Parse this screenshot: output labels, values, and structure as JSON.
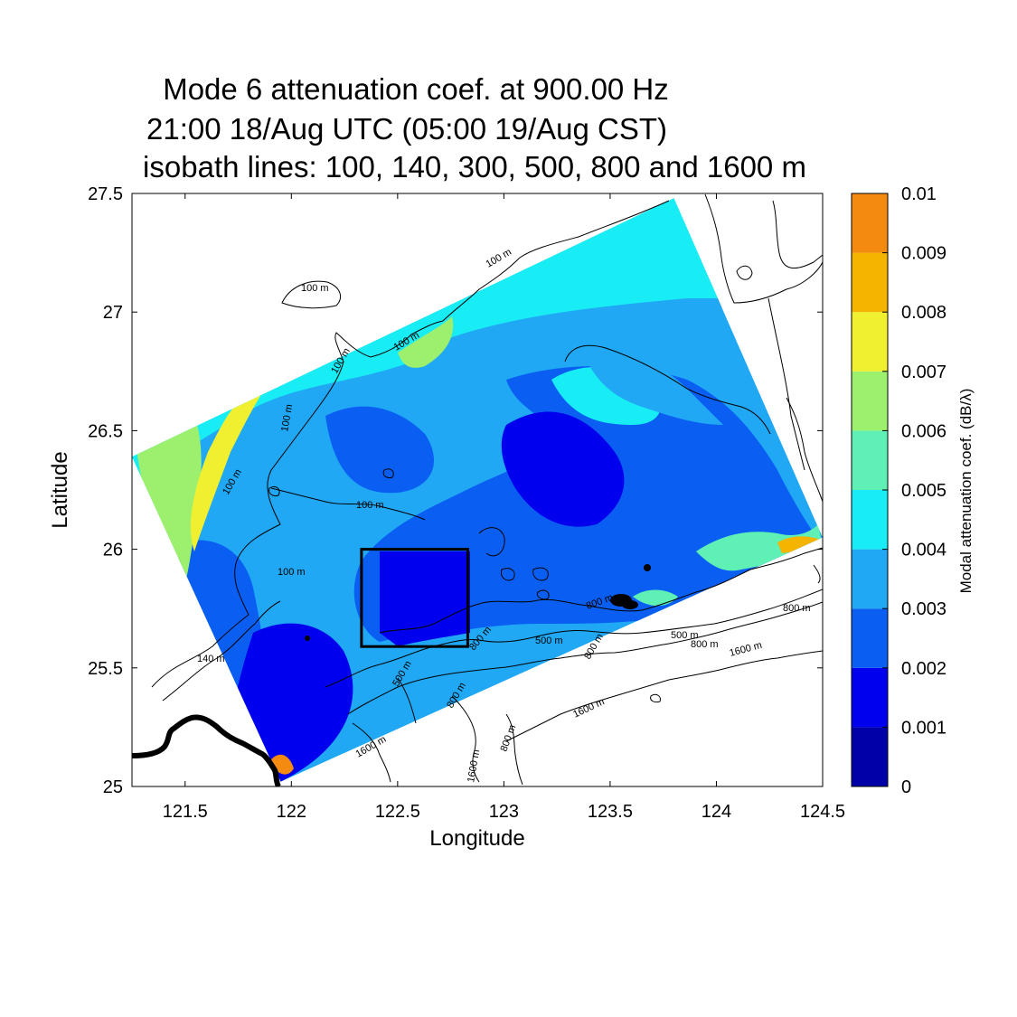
{
  "chart_data": {
    "type": "heatmap",
    "title_lines": [
      "Mode 6 attenuation coef. at 900.00 Hz",
      "21:00 18/Aug UTC (05:00 19/Aug CST)",
      "isobath lines: 100, 140, 300, 500, 800 and 1600 m"
    ],
    "xlabel": "Longitude",
    "ylabel": "Latitude",
    "xlim": [
      121.25,
      124.5
    ],
    "ylim": [
      25,
      27.5
    ],
    "xticks": [
      "121.5",
      "122",
      "122.5",
      "123",
      "123.5",
      "124",
      "124.5"
    ],
    "yticks": [
      "25",
      "25.5",
      "26",
      "26.5",
      "27",
      "27.5"
    ],
    "colorbar": {
      "label": "Modal attenuation coef. (dB/λ)",
      "ticks": [
        "0",
        "0.001",
        "0.002",
        "0.003",
        "0.004",
        "0.005",
        "0.006",
        "0.007",
        "0.008",
        "0.009",
        "0.01"
      ],
      "colors": [
        "#0000a8",
        "#0000ee",
        "#0a5ff2",
        "#20a8f4",
        "#18ecf4",
        "#5ef0b4",
        "#9cf06e",
        "#f0f030",
        "#f4b400",
        "#f48a10"
      ]
    },
    "domain_corners": [
      [
        121.25,
        26.39
      ],
      [
        123.8,
        27.48
      ],
      [
        124.5,
        26.05
      ],
      [
        121.95,
        25.02
      ]
    ],
    "highlight_box": {
      "lon": [
        122.33,
        122.83
      ],
      "lat": [
        25.59,
        26.0
      ]
    },
    "isobath_labels": [
      "100 m",
      "100 m",
      "100 m",
      "100 m",
      "100 m",
      "100 m",
      "100 m",
      "100 m",
      "140 m",
      "500 m",
      "500 m",
      "500 m",
      "800 m",
      "800 m",
      "800 m",
      "800 m",
      "800 m",
      "800 m",
      "800 m",
      "1600 m",
      "1600 m",
      "1600 m",
      "1600 m"
    ]
  }
}
